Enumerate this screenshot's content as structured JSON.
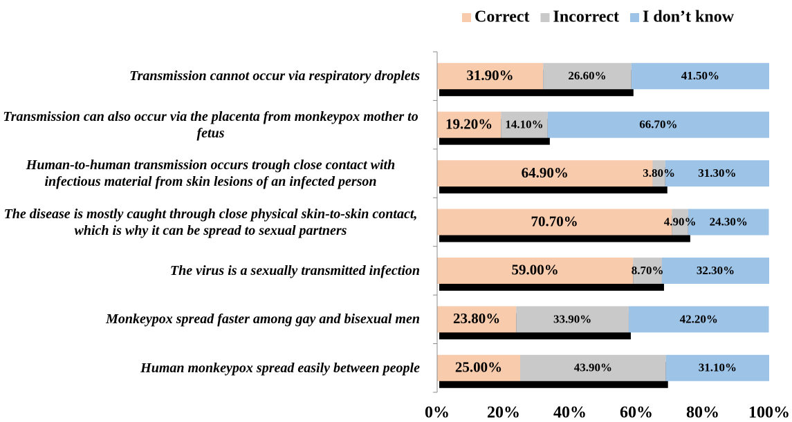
{
  "chart_data": {
    "type": "stacked_barh",
    "categories": [
      "Transmission cannot occur via respiratory droplets",
      "Transmission can also occur via the placenta from monkeypox mother to fetus",
      "Human-to-human transmission occurs trough close contact with infectious material from skin lesions of an infected person",
      "The disease is mostly caught through close physical skin-to-skin contact, which is why it can be spread to sexual partners",
      "The virus is a sexually transmitted infection",
      "Monkeypox spread faster among gay and bisexual men",
      "Human monkeypox spread easily between people"
    ],
    "series": [
      {
        "name": "Correct",
        "color": "#f8cbad",
        "values": [
          31.9,
          19.2,
          64.9,
          70.7,
          59.0,
          23.8,
          25.0
        ],
        "value_labels": [
          "31.90%",
          "19.20%",
          "64.90%",
          "70.70%",
          "59.00%",
          "23.80%",
          "25.00%"
        ]
      },
      {
        "name": "Incorrect",
        "color": "#c9c9c9",
        "values": [
          26.6,
          14.1,
          3.8,
          4.9,
          8.7,
          33.9,
          43.9
        ],
        "value_labels": [
          "26.60%",
          "14.10%",
          "3.80%",
          "4.90%",
          "8.70%",
          "33.90%",
          "43.90%"
        ]
      },
      {
        "name": "I don’t know",
        "color": "#9dc3e6",
        "values": [
          41.5,
          66.7,
          31.3,
          24.3,
          32.3,
          42.2,
          31.1
        ],
        "value_labels": [
          "41.50%",
          "66.70%",
          "31.30%",
          "24.30%",
          "32.30%",
          "42.20%",
          "31.10%"
        ]
      }
    ],
    "xlim": [
      0,
      100
    ],
    "xticks": [
      {
        "value": 0,
        "label": "0%"
      },
      {
        "value": 20,
        "label": "20%"
      },
      {
        "value": 40,
        "label": "40%"
      },
      {
        "value": 60,
        "label": "60%"
      },
      {
        "value": 80,
        "label": "80%"
      },
      {
        "value": 100,
        "label": "100%"
      }
    ],
    "legend": "top"
  }
}
